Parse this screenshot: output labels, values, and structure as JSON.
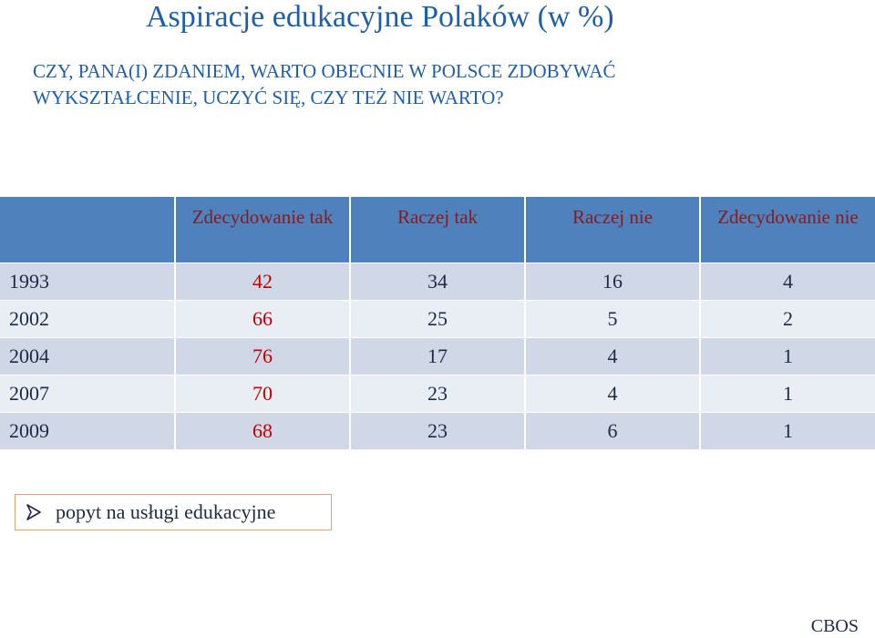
{
  "title": "Aspiracje edukacyjne Polaków (w %)",
  "question": {
    "line1": "CZY, PANA(I) ZDANIEM, WARTO OBECNIE W POLSCE ZDOBYWAĆ",
    "line2": "WYKSZTAŁCENIE, UCZYĆ SIĘ, CZY TEŻ NIE WARTO?"
  },
  "table": {
    "headers": [
      "",
      "Zdecydowanie tak",
      "Raczej tak",
      "Raczej nie",
      "Zdecydowanie nie"
    ],
    "rows": [
      {
        "year": "1993",
        "values": [
          "42",
          "34",
          "16",
          "4"
        ]
      },
      {
        "year": "2002",
        "values": [
          "66",
          "25",
          "5",
          "2"
        ]
      },
      {
        "year": "2004",
        "values": [
          "76",
          "17",
          "4",
          "1"
        ]
      },
      {
        "year": "2007",
        "values": [
          "70",
          "23",
          "4",
          "1"
        ]
      },
      {
        "year": "2009",
        "values": [
          "68",
          "23",
          "6",
          "1"
        ]
      }
    ]
  },
  "note": {
    "icon": "arrow-bullet-icon",
    "text": "popyt na usługi edukacyjne"
  },
  "source": "CBOS",
  "colors": {
    "title": "#1f5fa8",
    "header_bg": "#4f81bd",
    "header_text": "#8b1a1a",
    "row_odd": "#d0d8e8",
    "row_even": "#e9edf4",
    "accent_value": "#c00000",
    "note_border": "#e8a070"
  }
}
